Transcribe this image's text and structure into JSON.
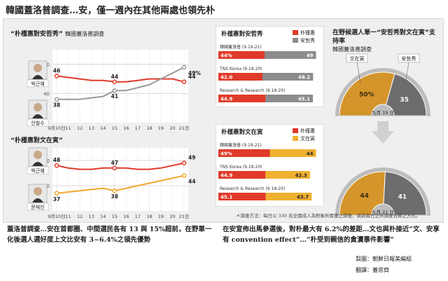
{
  "title": "韓國蓋洛普調查…安，僅一週內在其他兩處也領先朴",
  "chart_data": [
    {
      "type": "line",
      "title": "“朴槿惠對安哲秀”",
      "subtitle": "韓國蓋洛普調查",
      "x": [
        "9月10日",
        "11",
        "12",
        "13",
        "14",
        "15",
        "16",
        "17",
        "18",
        "19",
        "20",
        "21日"
      ],
      "ylim": [
        30,
        55
      ],
      "yticks": [
        40,
        50
      ],
      "series": [
        {
          "name": "박근혜",
          "color": "#e03a2a",
          "values": [
            46,
            45.5,
            45,
            44.5,
            44.5,
            44,
            44,
            44.5,
            45,
            45,
            45,
            44
          ],
          "labels": [
            {
              "i": 0,
              "text": "46"
            },
            {
              "i": 5,
              "text": "44"
            },
            {
              "i": 11,
              "text": "44"
            }
          ]
        },
        {
          "name": "안철수",
          "color": "#9a9a9a",
          "values": [
            38,
            38,
            38,
            38.5,
            39,
            41,
            41,
            42,
            43,
            45,
            47,
            49
          ],
          "labels": [
            {
              "i": 0,
              "text": "38"
            },
            {
              "i": 5,
              "text": "41"
            },
            {
              "i": 11,
              "text": "49%"
            }
          ]
        }
      ]
    },
    {
      "type": "line",
      "title": "“朴槿惠對文在寅”",
      "x": [
        "9月10日",
        "11",
        "12",
        "13",
        "14",
        "15",
        "16",
        "17",
        "18",
        "19",
        "20",
        "21日"
      ],
      "ylim": [
        30,
        55
      ],
      "yticks": [
        40,
        50
      ],
      "series": [
        {
          "name": "박근혜",
          "color": "#e03a2a",
          "values": [
            48,
            47,
            46.5,
            46.5,
            47,
            47,
            47,
            46.5,
            46.5,
            47,
            48,
            49
          ],
          "labels": [
            {
              "i": 0,
              "text": "48"
            },
            {
              "i": 5,
              "text": "47"
            },
            {
              "i": 11,
              "text": "49"
            }
          ]
        },
        {
          "name": "문재인",
          "color": "#f0a830",
          "values": [
            37,
            37.5,
            38,
            38.5,
            39,
            38,
            39,
            40,
            41,
            42,
            43,
            44
          ],
          "labels": [
            {
              "i": 0,
              "text": "37"
            },
            {
              "i": 5,
              "text": "38"
            },
            {
              "i": 11,
              "text": "44"
            }
          ]
        }
      ]
    },
    {
      "type": "bar",
      "title": "朴槿惠對安哲秀",
      "legend": [
        "朴槿惠",
        "安哲秀"
      ],
      "colors": [
        "#e03a2a",
        "#8c8c8c"
      ],
      "categories": [
        "韓國蓋洛普 (9.19-21)",
        "TNS Korea (9.19-20)",
        "Research & Research (9.18-20)"
      ],
      "series": [
        {
          "name": "朴槿惠",
          "values": [
            44,
            42.0,
            44.9
          ],
          "labels": [
            "44%",
            "42.0",
            "44.9"
          ]
        },
        {
          "name": "安哲秀",
          "values": [
            49,
            48.2,
            45.1
          ],
          "labels": [
            "49",
            "48.2",
            "45.1"
          ]
        }
      ]
    },
    {
      "type": "bar",
      "title": "朴槿惠對文在寅",
      "legend": [
        "朴槿惠",
        "文在寅"
      ],
      "colors": [
        "#e03a2a",
        "#f0b030"
      ],
      "categories": [
        "韓國蓋洛普 (9.19-21)",
        "TNS Korea (9.19-20)",
        "Research & Research (9.18-20)"
      ],
      "series": [
        {
          "name": "朴槿惠",
          "values": [
            49,
            44.9,
            45.1
          ],
          "labels": [
            "49%",
            "44.9",
            "45.1"
          ]
        },
        {
          "name": "文在寅",
          "values": [
            44,
            42.3,
            43.7
          ],
          "labels": [
            "44",
            "42.3",
            "43.7"
          ]
        }
      ]
    },
    {
      "type": "pie",
      "title": "在野候選人單一“安哲秀對文在寅”支持率",
      "subtitle": "韓國蓋洛普調查",
      "slices": [
        {
          "name": "文在寅",
          "value": 50,
          "label": "50%",
          "color": "#d4952a"
        },
        {
          "name": "安哲秀",
          "value": 35,
          "label": "35",
          "color": "#6d6d6d"
        }
      ],
      "date_label": "九月 19 日"
    },
    {
      "type": "pie",
      "slices": [
        {
          "name": "文在寅",
          "value": 44,
          "label": "44",
          "color": "#d4952a"
        },
        {
          "name": "安哲秀",
          "value": 41,
          "label": "41",
          "color": "#6d6d6d"
        }
      ],
      "date_label": "九月 21 日"
    }
  ],
  "photo_labels": {
    "park1": "박근혜",
    "ahn": "안철수",
    "park2": "박근혜",
    "moon": "문재인"
  },
  "callouts": {
    "moon": "文在寅",
    "ahn": "安哲秀"
  },
  "footnote": "＊調查方法：每日以 330 名全國成人為對象所實施之調查，與前兩日之所調查合算之方式。",
  "summary_left": "蓋洛普調查…安在首都圈、中間選民各有 13 與 15%超前，在野單一化後選人選好度上文比安有 3~6.4%之領先優勢",
  "summary_right": "在安宣佈出馬參選後，對朴最大有 6.2%的差距…文也與朴接近“文、安享有 convention effect”…“朴受到親信的貪瀆事件影響”",
  "credits": {
    "line1": "製圖：朝鮮日報美編組",
    "line2": "翻譯：蓋思齊"
  }
}
